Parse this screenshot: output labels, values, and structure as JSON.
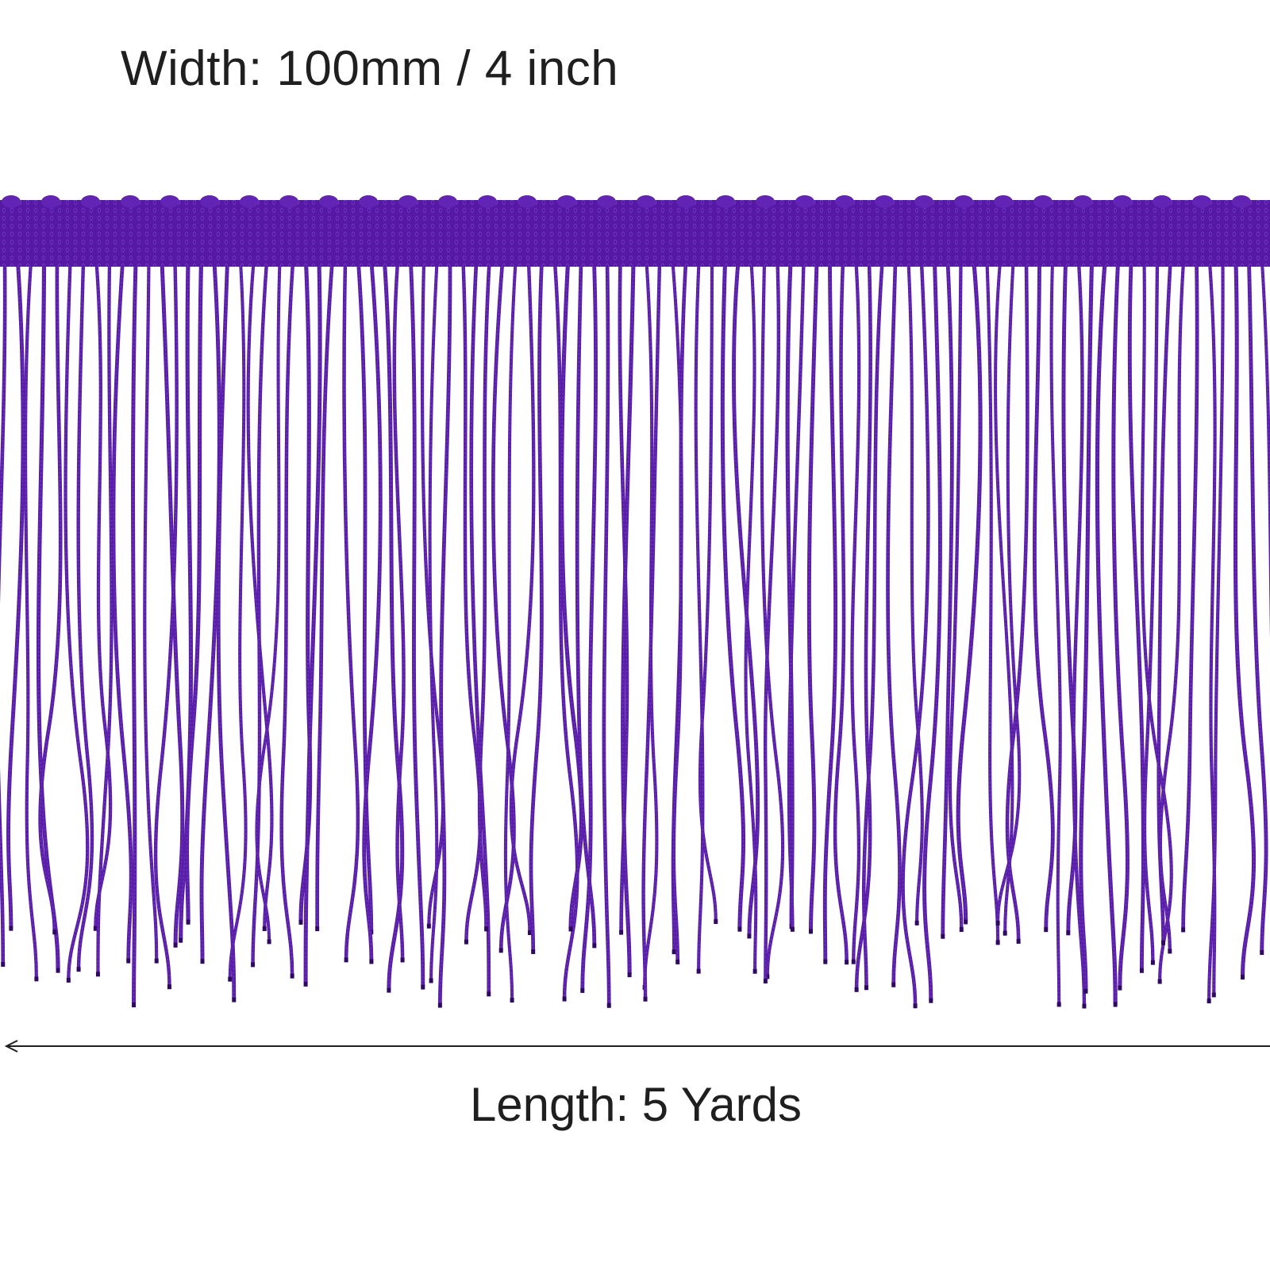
{
  "dimensions": {
    "width_label": "Width: 100mm / 4 inch",
    "length_label": "Length: 5 Yards"
  },
  "product": {
    "item": "chainette fringe trim",
    "color": "#5a1fa8",
    "header_color": "#5416a2"
  }
}
